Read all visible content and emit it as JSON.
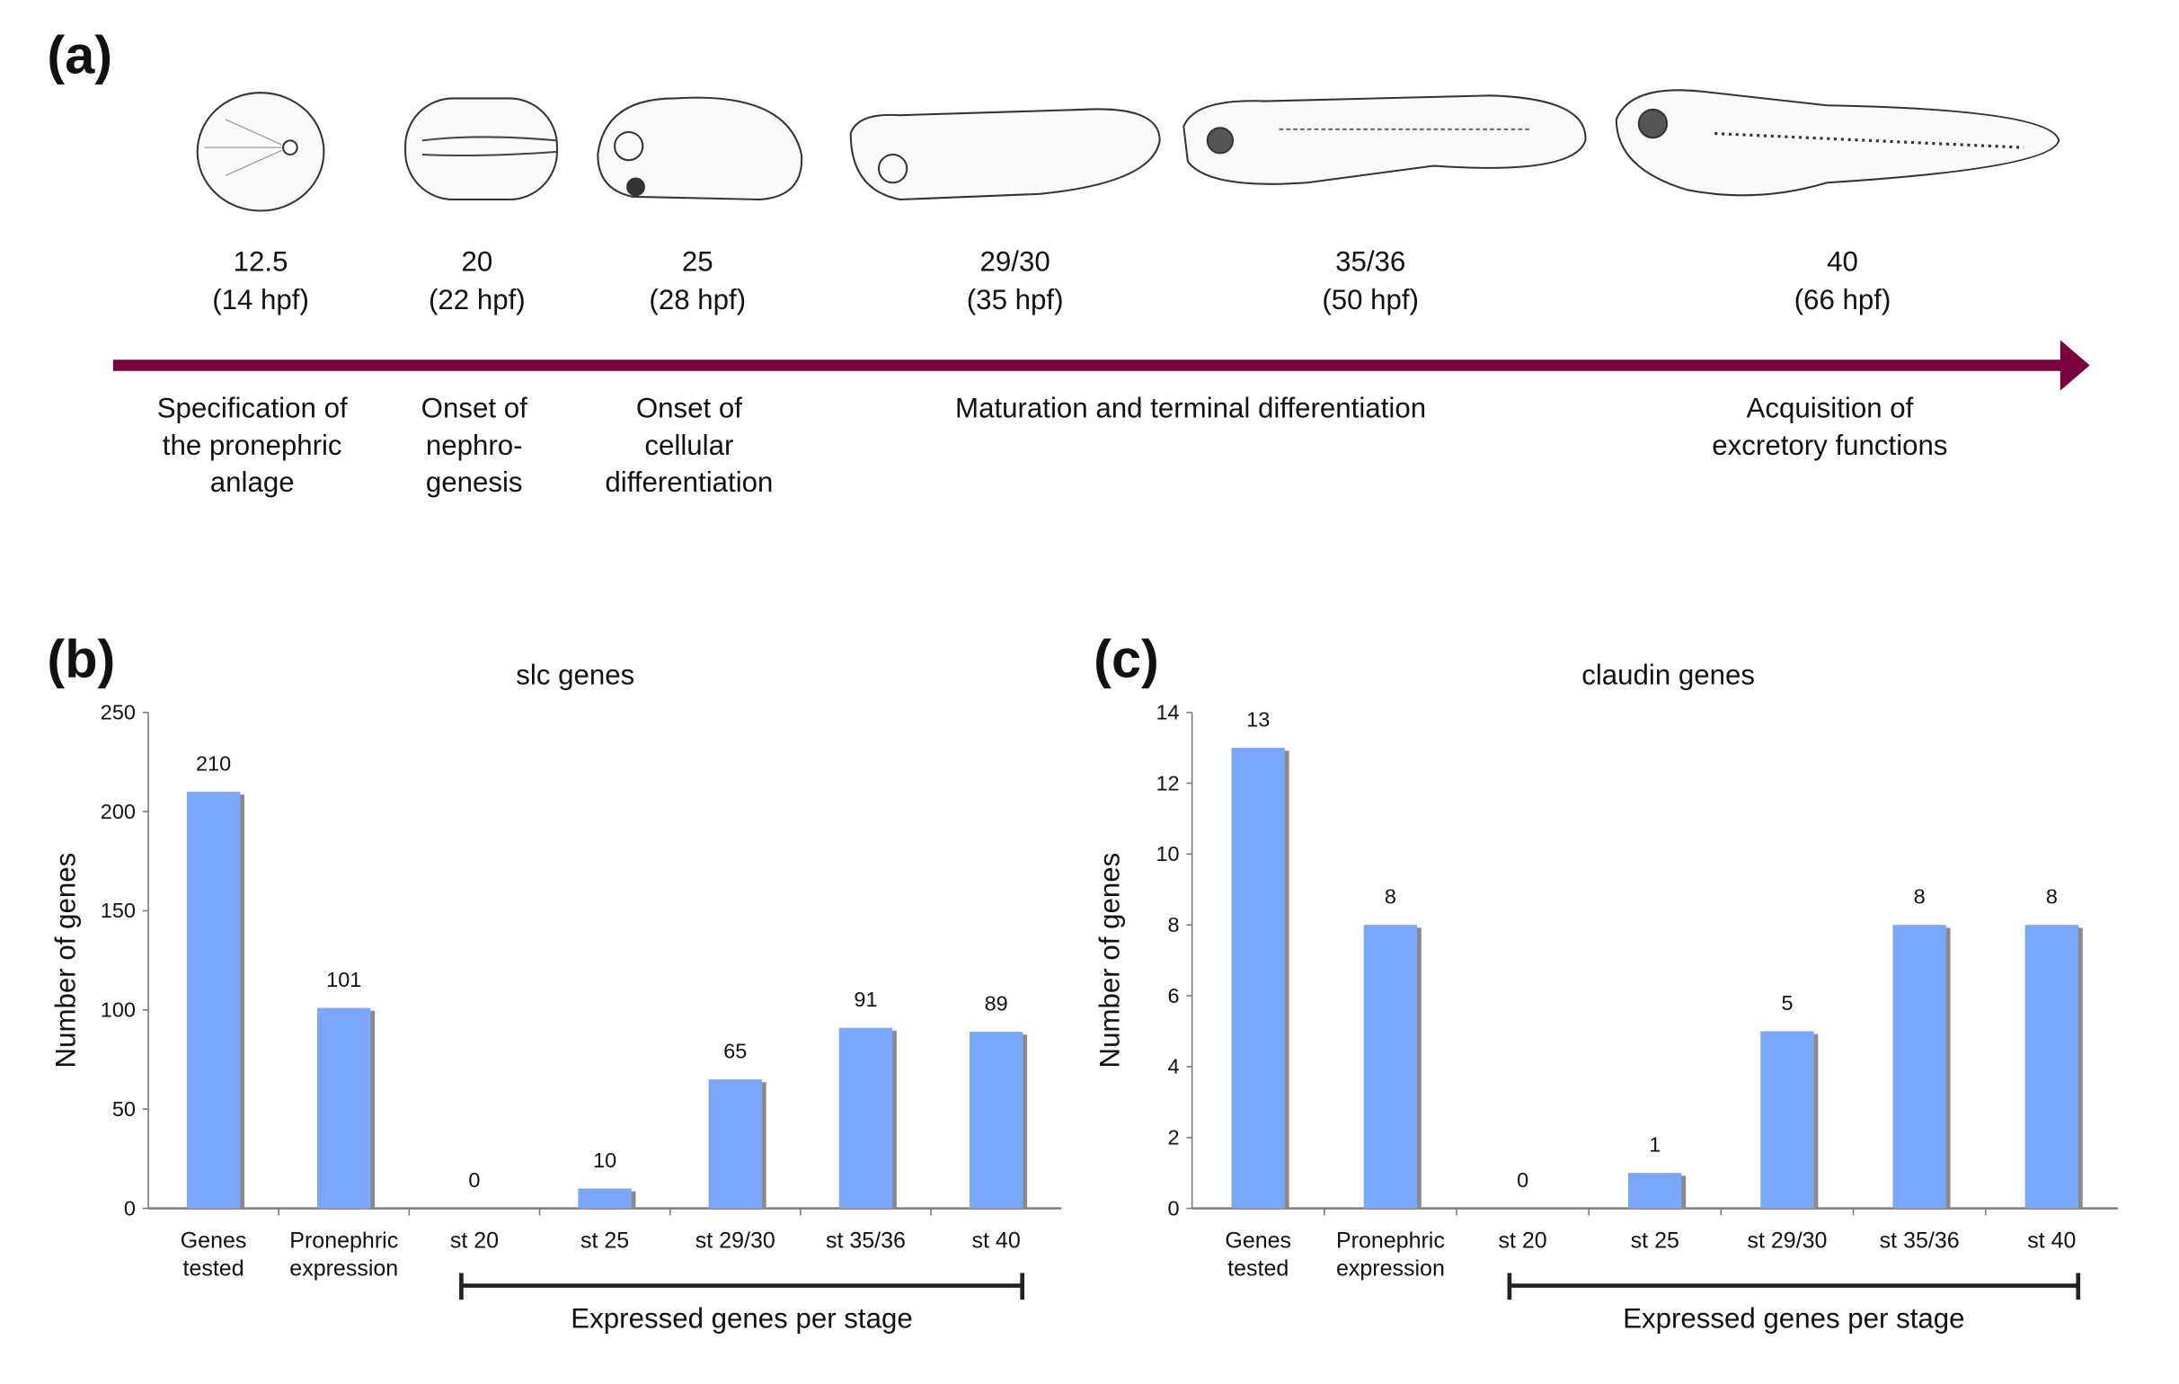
{
  "panel_a": {
    "label": "(a)",
    "stages": [
      {
        "stage": "12.5",
        "hpf": "(14 hpf)"
      },
      {
        "stage": "20",
        "hpf": "(22 hpf)"
      },
      {
        "stage": "25",
        "hpf": "(28 hpf)"
      },
      {
        "stage": "29/30",
        "hpf": "(35 hpf)"
      },
      {
        "stage": "35/36",
        "hpf": "(50 hpf)"
      },
      {
        "stage": "40",
        "hpf": "(66 hpf)"
      }
    ],
    "phases": [
      [
        "Specification of",
        "the pronephric",
        "anlage"
      ],
      [
        "Onset of",
        "nephro-",
        "genesis"
      ],
      [
        "Onset of",
        "cellular",
        "differentiation"
      ],
      [
        "Maturation and terminal differentiation"
      ],
      [
        "Acquisition of",
        "excretory functions"
      ]
    ],
    "arrow_color": "#7a0040"
  },
  "chart_data": [
    {
      "type": "bar",
      "panel_label": "(b)",
      "title": "slc genes",
      "ylabel": "Number of genes",
      "xlabel": "Expressed genes per stage",
      "categories": [
        [
          "Genes",
          "tested"
        ],
        [
          "Pronephric",
          "expression"
        ],
        [
          "st 20"
        ],
        [
          "st 25"
        ],
        [
          "st 29/30"
        ],
        [
          "st 35/36"
        ],
        [
          "st 40"
        ]
      ],
      "values": [
        210,
        101,
        0,
        10,
        65,
        91,
        89
      ],
      "ylim": [
        0,
        250
      ],
      "yticks": [
        0,
        50,
        100,
        150,
        200,
        250
      ],
      "bar_color": "#7ba7fa",
      "grid": false
    },
    {
      "type": "bar",
      "panel_label": "(c)",
      "title": "claudin genes",
      "ylabel": "Number of genes",
      "xlabel": "Expressed genes per stage",
      "categories": [
        [
          "Genes",
          "tested"
        ],
        [
          "Pronephric",
          "expression"
        ],
        [
          "st 20"
        ],
        [
          "st 25"
        ],
        [
          "st 29/30"
        ],
        [
          "st 35/36"
        ],
        [
          "st 40"
        ]
      ],
      "values": [
        13,
        8,
        0,
        1,
        5,
        8,
        8
      ],
      "ylim": [
        0,
        14
      ],
      "yticks": [
        0,
        2,
        4,
        6,
        8,
        10,
        12,
        14
      ],
      "bar_color": "#7ba7fa",
      "grid": false
    }
  ]
}
